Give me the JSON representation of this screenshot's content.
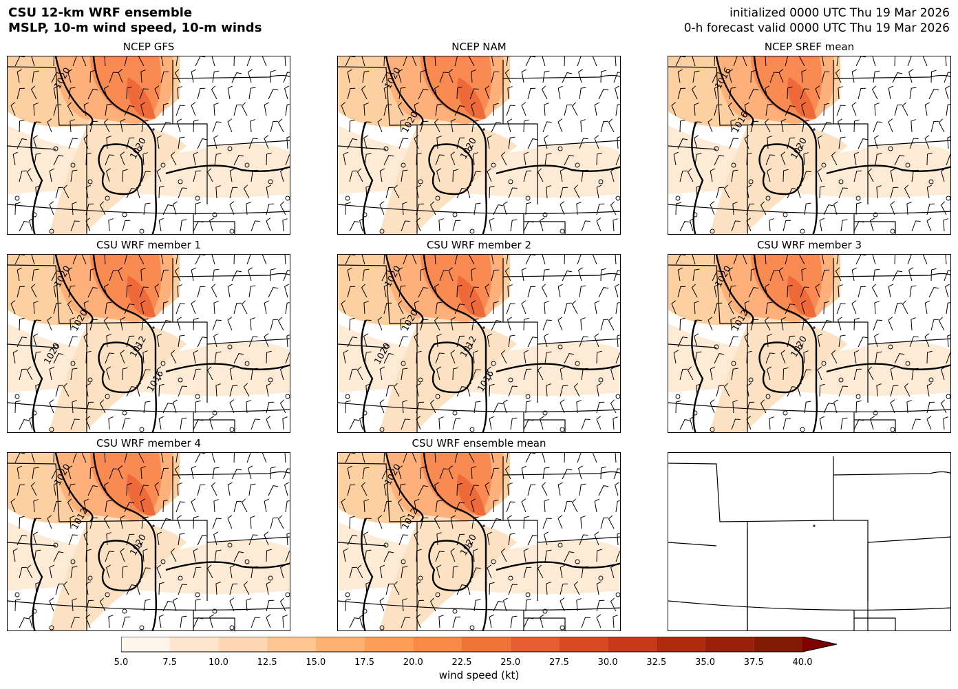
{
  "header": {
    "title_line1": "CSU 12-km WRF ensemble",
    "title_line2": "MSLP, 10-m wind speed, 10-m winds",
    "init_line": "initialized 0000 UTC Thu 19 Mar 2026",
    "valid_line": "0-h forecast valid 0000 UTC Thu 19 Mar 2026"
  },
  "panels": [
    {
      "title": "NCEP GFS",
      "isobar_labels": [
        "1020",
        "1020"
      ],
      "shaded": true
    },
    {
      "title": "NCEP NAM",
      "isobar_labels": [
        "1020",
        "1020",
        "1020"
      ],
      "shaded": true
    },
    {
      "title": "NCEP SREF mean",
      "isobar_labels": [
        "1016",
        "1020",
        "1016"
      ],
      "shaded": true
    },
    {
      "title": "CSU WRF member 1",
      "isobar_labels": [
        "1020",
        "1012",
        "1020",
        "1020",
        "1016"
      ],
      "shaded": true
    },
    {
      "title": "CSU WRF member 2",
      "isobar_labels": [
        "1020",
        "1012",
        "1020",
        "1020",
        "1016"
      ],
      "shaded": true
    },
    {
      "title": "CSU WRF member 3",
      "isobar_labels": [
        "1020",
        "1020",
        "1012"
      ],
      "shaded": true
    },
    {
      "title": "CSU WRF member 4",
      "isobar_labels": [
        "1020",
        "1020",
        "1012"
      ],
      "shaded": true
    },
    {
      "title": "CSU WRF ensemble mean",
      "isobar_labels": [
        "1020",
        "1020",
        "1012"
      ],
      "shaded": true
    },
    {
      "title": "",
      "isobar_labels": [],
      "shaded": false
    }
  ],
  "colorbar": {
    "label": "wind speed (kt)",
    "ticks": [
      "5.0",
      "7.5",
      "10.0",
      "12.5",
      "15.0",
      "17.5",
      "20.0",
      "22.5",
      "25.0",
      "27.5",
      "30.0",
      "32.5",
      "35.0",
      "37.5",
      "40.0"
    ],
    "colors": [
      "#fff5eb",
      "#fee6ce",
      "#fdd8b3",
      "#fdc692",
      "#fdb272",
      "#fd9d58",
      "#f88a45",
      "#f0743a",
      "#e65e2f",
      "#d94a24",
      "#c63919",
      "#b02a10",
      "#9b2009",
      "#811b05"
    ],
    "extend_color": "#7f0000"
  }
}
